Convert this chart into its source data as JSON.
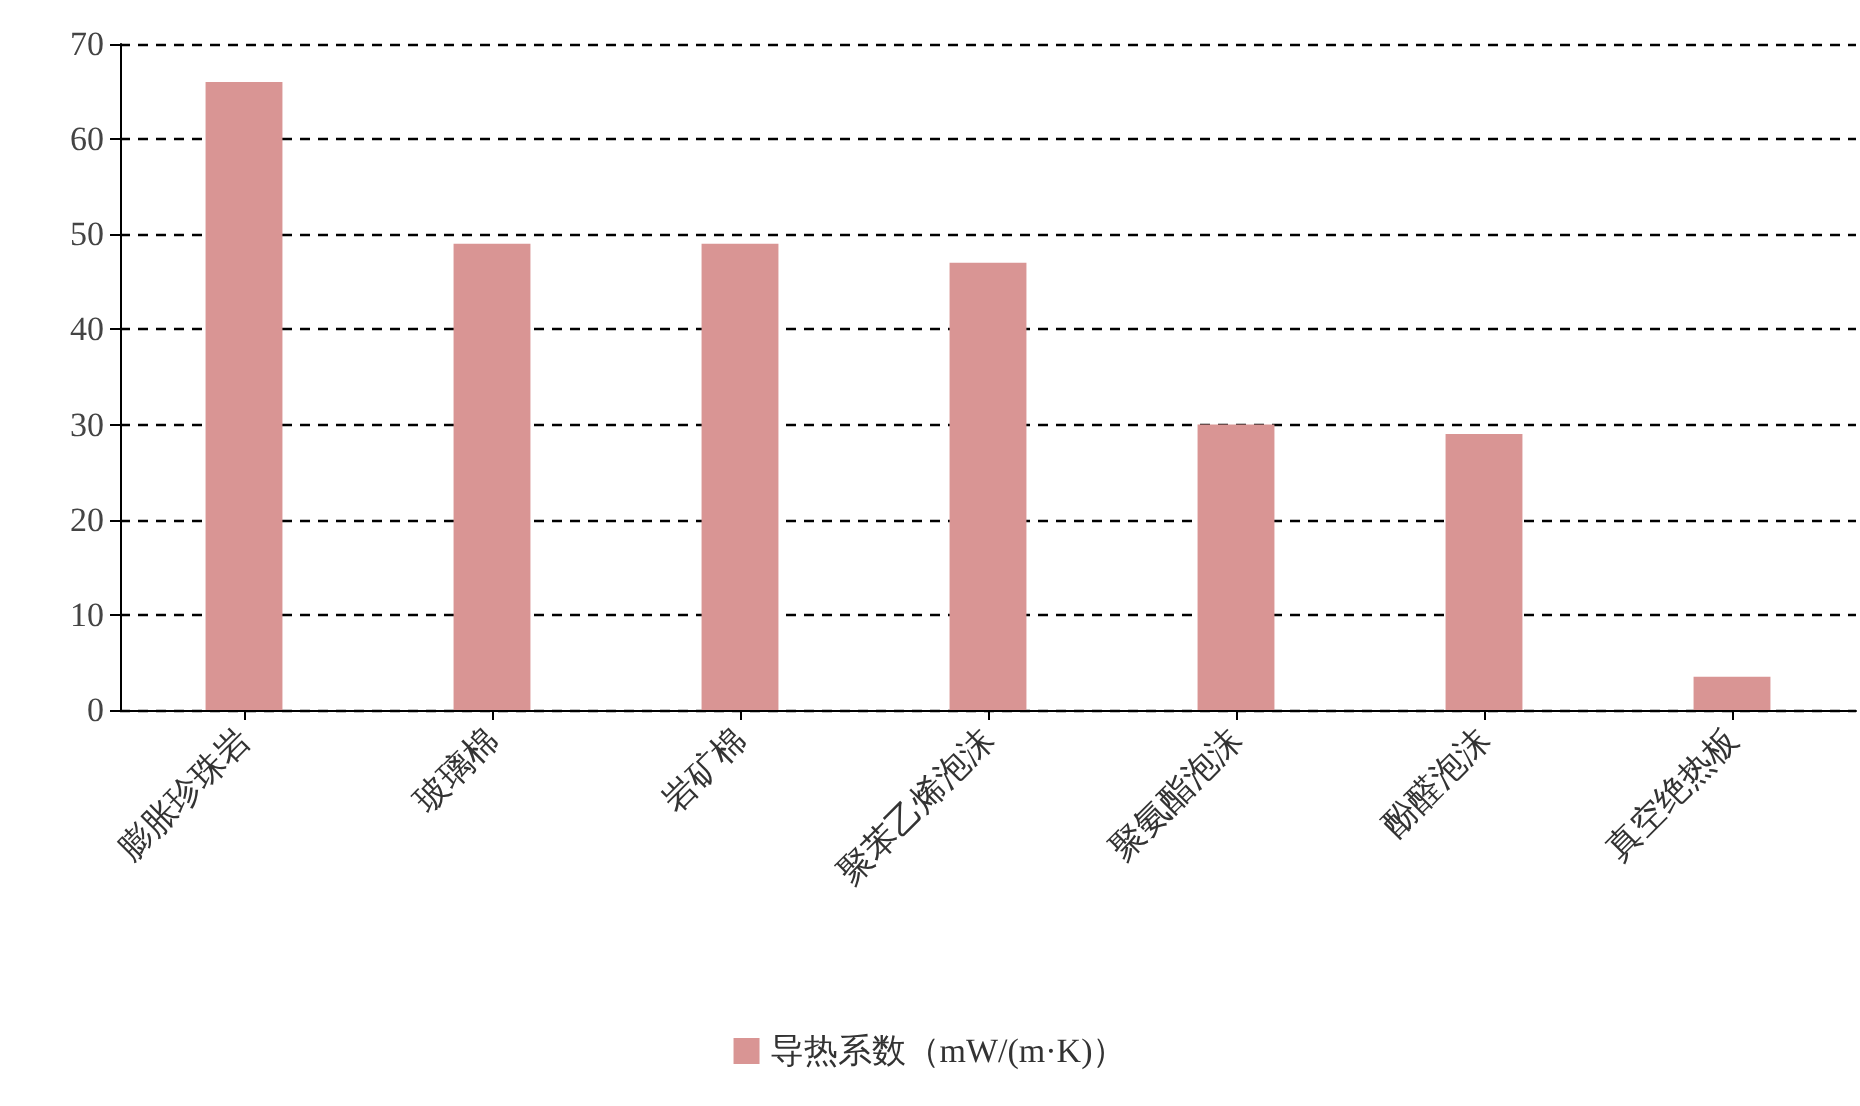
{
  "chart_data": {
    "type": "bar",
    "categories": [
      "膨胀珍珠岩",
      "玻璃棉",
      "岩矿棉",
      "聚苯乙烯泡沫",
      "聚氨酯泡沫",
      "酚醛泡沫",
      "真空绝热板"
    ],
    "series": [
      {
        "name": "导热系数（mW/(m·K)）",
        "color": "#d99594",
        "values": [
          66,
          49,
          49,
          47,
          30,
          29,
          3.5
        ]
      }
    ],
    "ylim": [
      0,
      70
    ],
    "yticks": [
      0,
      10,
      20,
      30,
      40,
      50,
      60,
      70
    ],
    "grid": "y",
    "legend": "bottom"
  }
}
